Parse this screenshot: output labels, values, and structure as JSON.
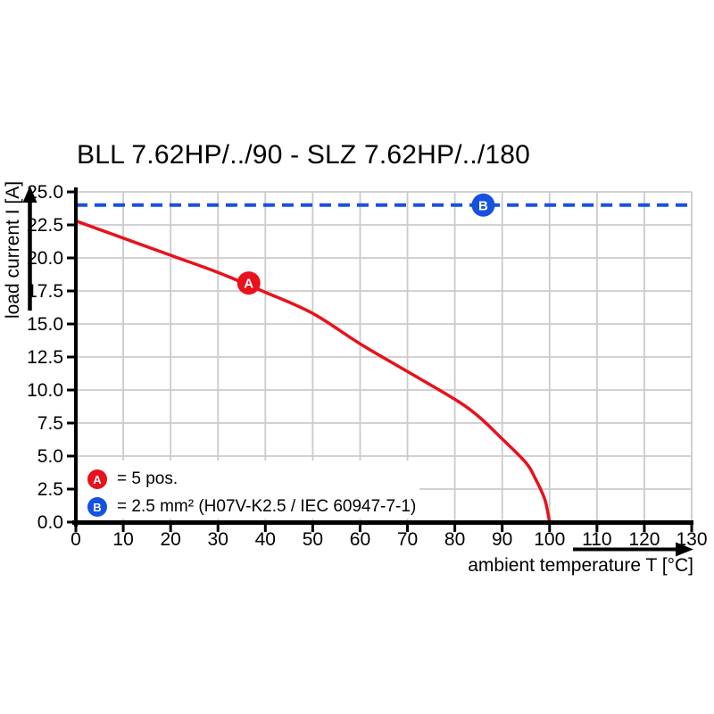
{
  "chart_data": {
    "type": "line",
    "title": "BLL 7.62HP/../90 - SLZ 7.62HP/../180",
    "xlabel": "ambient temperature T [°C]",
    "ylabel": "load current I [A]",
    "xlim": [
      0,
      130
    ],
    "ylim": [
      0,
      25
    ],
    "x_ticks": [
      0,
      10,
      20,
      30,
      40,
      50,
      60,
      70,
      80,
      90,
      100,
      110,
      120,
      130
    ],
    "y_ticks": [
      "0.0",
      "2.5",
      "5.0",
      "7.5",
      "10.0",
      "12.5",
      "15.0",
      "17.5",
      "20.0",
      "22.5",
      "25.0"
    ],
    "grid": true,
    "grid_color": "#cbcbcb",
    "axis_color": "#000000",
    "legend_position": "bottom-left-inside",
    "series": [
      {
        "name": "A",
        "description": "5 pos.",
        "color": "#e8111c",
        "style": "solid",
        "points": [
          [
            0,
            22.8
          ],
          [
            10,
            21.5
          ],
          [
            20,
            20.2
          ],
          [
            30,
            18.9
          ],
          [
            40,
            17.4
          ],
          [
            50,
            15.8
          ],
          [
            60,
            13.5
          ],
          [
            70,
            11.4
          ],
          [
            80,
            9.3
          ],
          [
            85,
            8.0
          ],
          [
            90,
            6.3
          ],
          [
            95,
            4.5
          ],
          [
            97,
            3.3
          ],
          [
            99,
            1.7
          ],
          [
            100,
            0
          ]
        ],
        "marker": {
          "x": 36.5,
          "y": 18.1,
          "label": "A"
        }
      },
      {
        "name": "B",
        "description": "2.5 mm² (H07V-K2.5 / IEC 60947-7-1)",
        "color": "#1652e0",
        "style": "dashed",
        "points": [
          [
            0,
            24
          ],
          [
            130,
            24
          ]
        ],
        "marker": {
          "x": 86,
          "y": 24,
          "label": "B"
        }
      }
    ]
  },
  "legend": {
    "items": [
      {
        "badge": "A",
        "color": "#e8111c",
        "text": "= 5 pos."
      },
      {
        "badge": "B",
        "color": "#1652e0",
        "text": "= 2.5 mm² (H07V-K2.5 / IEC 60947-7-1)"
      }
    ]
  }
}
